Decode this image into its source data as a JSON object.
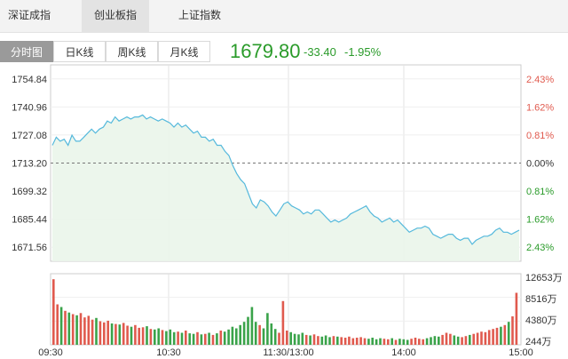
{
  "index_tabs": [
    {
      "label": "深证成指",
      "active": false
    },
    {
      "label": "创业板指",
      "active": true
    },
    {
      "label": "上证指数",
      "active": false
    }
  ],
  "period_tabs": [
    {
      "label": "分时图",
      "active": true
    },
    {
      "label": "日K线",
      "active": false
    },
    {
      "label": "周K线",
      "active": false
    },
    {
      "label": "月K线",
      "active": false
    }
  ],
  "quote": {
    "price": "1679.80",
    "change": "-33.40",
    "change_pct": "-1.95%"
  },
  "colors": {
    "up": "#e05a4e",
    "down": "#2a9b2a",
    "line": "#55b9dc",
    "volume_up": "#e05a4e",
    "volume_down": "#3aa34a"
  },
  "chart_data": {
    "type": "line",
    "prev_close": 1713.2,
    "ylim": [
      1664.62,
      1761.78
    ],
    "y_ticks": [
      "1754.84",
      "1740.96",
      "1727.08",
      "1713.20",
      "1699.32",
      "1685.44",
      "1671.56"
    ],
    "pct_ticks": [
      "2.43%",
      "1.62%",
      "0.81%",
      "0.00%",
      "0.81%",
      "1.62%",
      "2.43%"
    ],
    "x_ticks": [
      "09:30",
      "10:30",
      "11:30/13:00",
      "14:00",
      "15:00"
    ],
    "volume_ticks": [
      "12653万",
      "8516万",
      "4380万",
      "244万"
    ],
    "volume_ylim": [
      0,
      13000
    ],
    "series": [
      {
        "values": [
          1722,
          1726,
          1724,
          1725,
          1722,
          1727,
          1724,
          1724,
          1726,
          1728,
          1730,
          1728,
          1730,
          1731,
          1734,
          1733,
          1736,
          1734,
          1735,
          1736,
          1735,
          1736,
          1736,
          1737,
          1735,
          1736,
          1735,
          1734,
          1735,
          1734,
          1733,
          1731,
          1733,
          1731,
          1732,
          1730,
          1728,
          1729,
          1726,
          1726,
          1724,
          1725,
          1722,
          1722,
          1719,
          1717,
          1712,
          1708,
          1705,
          1703,
          1698,
          1693,
          1691,
          1695,
          1694,
          1692,
          1689,
          1687,
          1690,
          1693,
          1694,
          1692,
          1691,
          1690,
          1688,
          1689,
          1688,
          1690,
          1690,
          1688,
          1686,
          1684,
          1685,
          1684,
          1685,
          1686,
          1688,
          1689,
          1690,
          1691,
          1692,
          1689,
          1687,
          1686,
          1684,
          1685,
          1686,
          1684,
          1685,
          1683,
          1681,
          1679,
          1680,
          1681,
          1681,
          1682,
          1681,
          1678,
          1677,
          1676,
          1677,
          1678,
          1678,
          1676,
          1675,
          1676,
          1676,
          1673,
          1675,
          1676,
          1677,
          1677,
          1678,
          1680,
          1681,
          1679,
          1679,
          1678,
          1679,
          1680
        ]
      }
    ],
    "volume": [
      12000,
      7400,
      6900,
      6200,
      5900,
      5600,
      5400,
      5800,
      5000,
      5300,
      4600,
      4900,
      4300,
      4100,
      4400,
      3900,
      3800,
      3700,
      4000,
      3500,
      3300,
      3600,
      3100,
      3200,
      3400,
      2900,
      2800,
      3000,
      2700,
      2500,
      2800,
      2300,
      2400,
      2200,
      2600,
      2100,
      2000,
      2300,
      1900,
      2000,
      2200,
      1800,
      2100,
      2600,
      2400,
      2800,
      3300,
      3000,
      3600,
      4200,
      5100,
      6900,
      4200,
      3600,
      3000,
      5800,
      3900,
      2900,
      2200,
      8000,
      2600,
      2300,
      2000,
      1900,
      2200,
      1800,
      1700,
      1900,
      1600,
      1500,
      1700,
      1400,
      1600,
      1500,
      1400,
      1300,
      1500,
      1200,
      1300,
      1400,
      1200,
      1100,
      1300,
      1000,
      1200,
      1100,
      1000,
      1200,
      900,
      1100,
      1000,
      900,
      1100,
      1300,
      1100,
      1000,
      1200,
      1400,
      1600,
      1500,
      1800,
      2200,
      2000,
      1700,
      1500,
      1400,
      1600,
      1800,
      2000,
      2200,
      2400,
      2300,
      2700,
      2900,
      3100,
      3300,
      3600,
      4200,
      5200,
      9500
    ]
  }
}
